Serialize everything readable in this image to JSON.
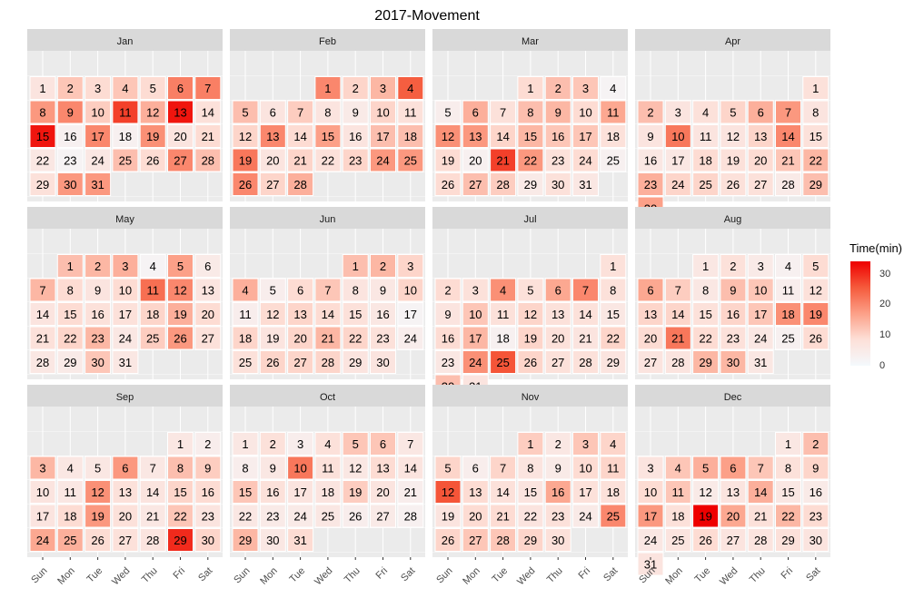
{
  "chart_data": {
    "type": "heatmap",
    "title": "2017-Movement",
    "weekday_labels": [
      "Sun",
      "Mon",
      "Tue",
      "Wed",
      "Thu",
      "Fri",
      "Sat"
    ],
    "legend": {
      "title": "Time(min)",
      "ticks": [
        0,
        10,
        20,
        30
      ],
      "range": [
        0,
        34
      ],
      "low_color": "#f4f9fd",
      "high_color": "#ee0000",
      "position": "right"
    },
    "colors": {
      "panel_bg": "#ebebeb",
      "strip_bg": "#d9d9d9",
      "grid_line": "#ffffff"
    },
    "months": [
      {
        "name": "Jan",
        "start_weekday": 0,
        "values": [
          7,
          12,
          9,
          12,
          9,
          21,
          21,
          18,
          20,
          11,
          28,
          15,
          32,
          8,
          32,
          3,
          20,
          3,
          19,
          7,
          9,
          6,
          2,
          6,
          13,
          9,
          20,
          13,
          8,
          18,
          18
        ]
      },
      {
        "name": "Feb",
        "start_weekday": 3,
        "values": [
          20,
          10,
          14,
          25,
          13,
          7,
          11,
          7,
          5,
          10,
          8,
          10,
          20,
          9,
          17,
          7,
          13,
          13,
          22,
          7,
          10,
          8,
          10,
          18,
          18,
          20,
          10,
          15
        ]
      },
      {
        "name": "Mar",
        "start_weekday": 3,
        "values": [
          9,
          13,
          12,
          2,
          4,
          15,
          8,
          13,
          14,
          9,
          16,
          19,
          18,
          10,
          14,
          12,
          12,
          8,
          9,
          3,
          28,
          18,
          8,
          9,
          3,
          9,
          13,
          11,
          5,
          8,
          6
        ]
      },
      {
        "name": "Apr",
        "start_weekday": 6,
        "values": [
          8,
          13,
          7,
          8,
          10,
          15,
          18,
          7,
          7,
          22,
          7,
          7,
          10,
          20,
          8,
          6,
          6,
          9,
          8,
          9,
          12,
          14,
          15,
          10,
          10,
          8,
          8,
          5,
          13,
          17
        ]
      },
      {
        "name": "May",
        "start_weekday": 1,
        "values": [
          13,
          14,
          15,
          2,
          17,
          5,
          14,
          9,
          7,
          9,
          23,
          20,
          7,
          7,
          9,
          8,
          8,
          10,
          15,
          9,
          8,
          10,
          14,
          6,
          11,
          18,
          8,
          6,
          5,
          12,
          6
        ]
      },
      {
        "name": "Jun",
        "start_weekday": 4,
        "values": [
          13,
          14,
          10,
          15,
          4,
          9,
          12,
          7,
          6,
          10,
          4,
          9,
          10,
          9,
          8,
          6,
          2,
          10,
          7,
          10,
          14,
          10,
          8,
          4,
          8,
          10,
          10,
          10,
          7,
          7
        ]
      },
      {
        "name": "Jul",
        "start_weekday": 6,
        "values": [
          8,
          9,
          8,
          19,
          8,
          16,
          20,
          8,
          7,
          12,
          8,
          10,
          8,
          8,
          6,
          9,
          14,
          3,
          10,
          8,
          7,
          10,
          6,
          19,
          26,
          10,
          8,
          8,
          7,
          13,
          7
        ]
      },
      {
        "name": "Aug",
        "start_weekday": 2,
        "values": [
          6,
          8,
          5,
          3,
          9,
          16,
          11,
          6,
          13,
          12,
          4,
          8,
          10,
          10,
          8,
          10,
          12,
          19,
          20,
          9,
          22,
          9,
          8,
          6,
          3,
          9,
          7,
          7,
          14,
          14,
          6
        ]
      },
      {
        "name": "Sep",
        "start_weekday": 5,
        "values": [
          6,
          4,
          14,
          6,
          6,
          18,
          6,
          13,
          11,
          7,
          6,
          19,
          8,
          7,
          10,
          9,
          7,
          9,
          18,
          8,
          6,
          12,
          7,
          16,
          15,
          9,
          8,
          7,
          30,
          10
        ]
      },
      {
        "name": "Oct",
        "start_weekday": 0,
        "values": [
          6,
          8,
          4,
          8,
          12,
          12,
          6,
          4,
          6,
          22,
          8,
          6,
          9,
          7,
          12,
          8,
          7,
          7,
          11,
          7,
          4,
          6,
          5,
          5,
          6,
          4,
          5,
          3,
          14,
          6,
          9
        ]
      },
      {
        "name": "Nov",
        "start_weekday": 3,
        "values": [
          11,
          6,
          12,
          10,
          10,
          4,
          10,
          7,
          5,
          9,
          10,
          26,
          9,
          8,
          7,
          16,
          8,
          8,
          7,
          9,
          9,
          7,
          8,
          5,
          20,
          10,
          12,
          12,
          10,
          8
        ]
      },
      {
        "name": "Dec",
        "start_weekday": 5,
        "values": [
          6,
          13,
          7,
          12,
          15,
          17,
          12,
          8,
          10,
          9,
          12,
          5,
          7,
          15,
          6,
          5,
          18,
          8,
          34,
          16,
          8,
          14,
          9,
          6,
          7,
          9,
          7,
          7,
          8,
          7,
          7
        ]
      }
    ]
  }
}
